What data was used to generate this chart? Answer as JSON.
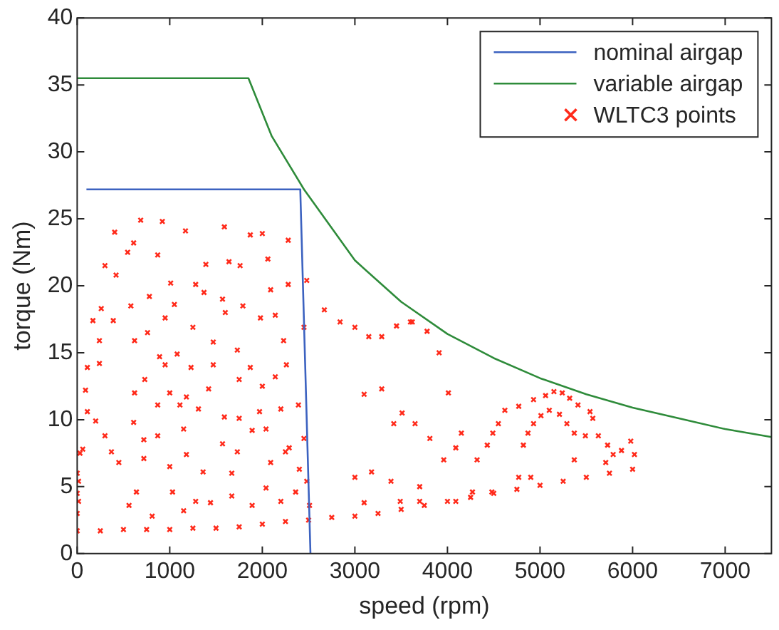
{
  "chart_data": {
    "type": "line",
    "xlabel": "speed (rpm)",
    "ylabel": "torque (Nm)",
    "xlim": [
      0,
      7500
    ],
    "ylim": [
      0,
      40
    ],
    "xticks": [
      0,
      1000,
      2000,
      3000,
      4000,
      5000,
      6000,
      7000
    ],
    "yticks": [
      0,
      5,
      10,
      15,
      20,
      25,
      30,
      35,
      40
    ],
    "grid": false,
    "legend": "top right",
    "series": [
      {
        "name": "nominal airgap",
        "type": "line",
        "color": "#3c62c0",
        "x": [
          100,
          2410,
          2520
        ],
        "values": [
          27.2,
          27.2,
          0
        ]
      },
      {
        "name": "variable airgap",
        "type": "line",
        "color": "#2e8b3a",
        "x": [
          0,
          1850,
          2100,
          2450,
          3000,
          3500,
          4000,
          4500,
          5000,
          5500,
          6000,
          6500,
          7000,
          7500
        ],
        "values": [
          35.5,
          35.5,
          31.2,
          27.2,
          21.9,
          18.8,
          16.4,
          14.6,
          13.1,
          11.9,
          10.9,
          10.1,
          9.3,
          8.7
        ]
      },
      {
        "name": "WLTC3 points",
        "type": "scatter",
        "marker": "cross",
        "color": "#ff2a1a",
        "x": [
          686,
          920,
          1590,
          405,
          1170,
          1870,
          2000,
          2280,
          610,
          545,
          870,
          1640,
          2060,
          300,
          1390,
          1760,
          420,
          1010,
          1280,
          2280,
          2480,
          2090,
          780,
          1370,
          1570,
          260,
          580,
          1050,
          1790,
          170,
          390,
          950,
          1250,
          1600,
          1980,
          2450,
          2140,
          240,
          620,
          760,
          890,
          1080,
          1470,
          1730,
          2230,
          110,
          240,
          730,
          950,
          1230,
          1470,
          1870,
          2260,
          90,
          620,
          1000,
          1180,
          1420,
          1750,
          2000,
          2140,
          110,
          200,
          610,
          870,
          1110,
          1310,
          1590,
          1750,
          1970,
          2200,
          2390,
          60,
          300,
          370,
          720,
          870,
          1150,
          1570,
          1890,
          2040,
          2290,
          2450,
          450,
          720,
          1000,
          1180,
          1360,
          1730,
          1670,
          2090,
          2250,
          2400,
          15,
          15,
          560,
          640,
          810,
          1030,
          1150,
          1280,
          1440,
          1670,
          1890,
          2040,
          2200,
          2360,
          2480,
          2510,
          2670,
          2840,
          3000,
          3150,
          3290,
          3450,
          3600,
          3620,
          3780,
          3910,
          4010,
          3290,
          3100,
          3510,
          3650,
          3420,
          3810,
          3960,
          4090,
          4150,
          4320,
          4430,
          4490,
          4550,
          4620,
          4770,
          4930,
          5060,
          5150,
          5240,
          5320,
          5410,
          5540,
          5570,
          4820,
          4870,
          4930,
          5010,
          5100,
          5210,
          5290,
          5370,
          5490,
          5630,
          5730,
          5710,
          5790,
          5880,
          5980,
          6020,
          4770,
          4900,
          4270,
          4480,
          3700,
          3390,
          3180,
          3000,
          3100,
          3490,
          3700,
          5370,
          4090,
          0,
          0,
          0,
          30,
          0,
          250,
          500,
          750,
          1000,
          1250,
          1500,
          1750,
          2000,
          2250,
          2500,
          2750,
          3000,
          3250,
          3500,
          3750,
          4000,
          4250,
          4500,
          4750,
          5000,
          5250,
          5500,
          5750,
          6000
        ],
        "values": [
          24.9,
          24.8,
          24.4,
          24.0,
          24.1,
          23.8,
          23.9,
          23.4,
          23.2,
          22.5,
          22.3,
          21.8,
          22.0,
          21.5,
          21.6,
          21.5,
          20.8,
          20.2,
          20.1,
          20.1,
          20.4,
          19.7,
          19.2,
          19.5,
          19.0,
          18.3,
          18.5,
          18.6,
          18.5,
          17.4,
          17.4,
          17.6,
          16.9,
          18.0,
          17.6,
          16.9,
          17.8,
          15.9,
          15.9,
          16.5,
          14.7,
          14.9,
          15.8,
          15.2,
          15.9,
          13.9,
          14.2,
          13.0,
          14.1,
          13.9,
          14.1,
          13.9,
          14.1,
          12.2,
          12.0,
          12.0,
          11.7,
          12.3,
          13.0,
          12.5,
          13.2,
          10.6,
          9.9,
          9.8,
          11.1,
          11.1,
          10.8,
          10.2,
          10.1,
          10.6,
          10.8,
          11.1,
          7.8,
          8.8,
          7.6,
          8.5,
          8.8,
          9.3,
          8.2,
          9.2,
          9.3,
          7.9,
          8.6,
          6.8,
          7.1,
          6.5,
          7.4,
          6.1,
          7.6,
          6.0,
          6.8,
          7.6,
          6.3,
          5.4,
          3.9,
          3.6,
          4.6,
          2.8,
          4.6,
          3.2,
          3.9,
          3.8,
          4.3,
          3.6,
          4.9,
          3.9,
          4.6,
          5.4,
          3.6,
          18.2,
          17.3,
          16.9,
          16.2,
          16.2,
          17.0,
          17.3,
          17.3,
          16.6,
          15.0,
          12.0,
          12.3,
          11.9,
          10.5,
          9.7,
          9.7,
          8.6,
          7.0,
          7.9,
          9.0,
          7.0,
          8.1,
          9.0,
          9.7,
          10.7,
          11.0,
          11.5,
          11.8,
          12.1,
          12.0,
          11.6,
          11.1,
          10.6,
          10.1,
          8.1,
          9.0,
          9.7,
          10.3,
          10.7,
          10.4,
          9.7,
          9.0,
          8.8,
          8.8,
          8.1,
          6.8,
          7.4,
          7.7,
          8.4,
          7.4,
          5.7,
          5.7,
          4.6,
          4.6,
          5.0,
          5.4,
          6.1,
          5.7,
          3.8,
          3.9,
          3.9,
          7.0,
          3.9,
          3.0,
          4.5,
          6.0,
          7.5,
          1.7,
          1.7,
          1.8,
          1.8,
          1.8,
          1.9,
          1.9,
          2.0,
          2.2,
          2.4,
          2.5,
          2.7,
          2.8,
          3.0,
          3.3,
          3.6,
          3.9,
          4.2,
          4.5,
          4.8,
          5.1,
          5.4,
          5.7,
          6.0,
          6.3
        ]
      }
    ]
  }
}
